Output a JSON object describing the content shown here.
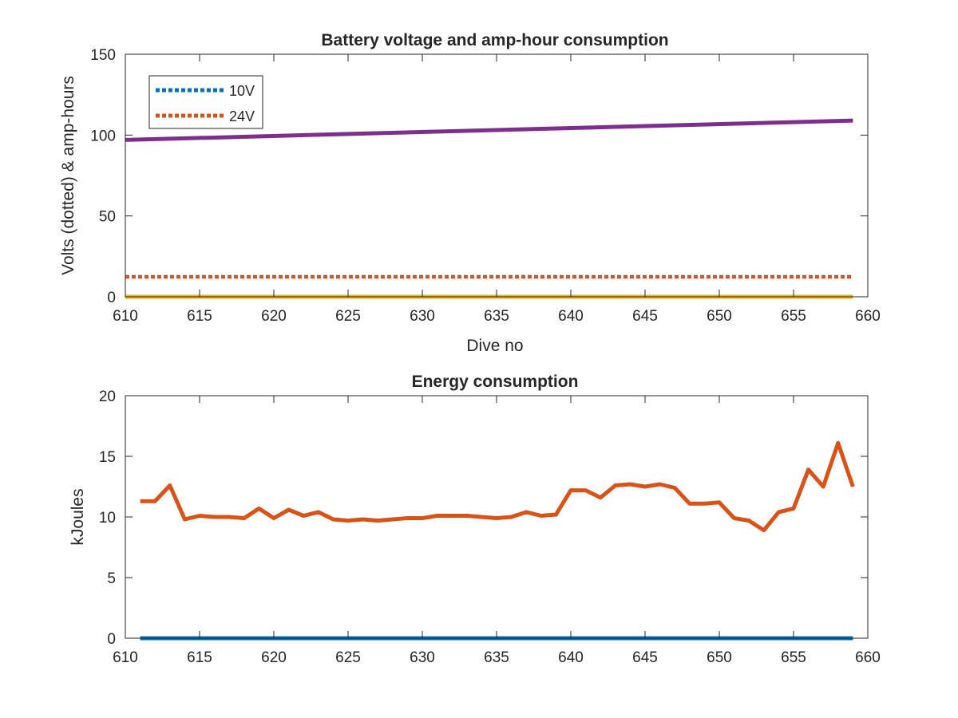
{
  "chart_data": [
    {
      "type": "line",
      "title": "Battery voltage and amp-hour consumption",
      "xlabel": "Dive no",
      "ylabel": "Volts (dotted) & amp-hours",
      "xlim": [
        610,
        660
      ],
      "ylim": [
        0,
        150
      ],
      "xticks": [
        610,
        615,
        620,
        625,
        630,
        635,
        640,
        645,
        650,
        655,
        660
      ],
      "yticks": [
        0,
        50,
        100,
        150
      ],
      "legend_position": "top-left",
      "grid": false,
      "series": [
        {
          "name": "10V",
          "style": "dotted",
          "color": "#0072BD",
          "x": [
            610,
            659
          ],
          "y": [
            12.5,
            12.5
          ]
        },
        {
          "name": "24V",
          "style": "dotted",
          "color": "#D95319",
          "x": [
            610,
            659
          ],
          "y": [
            12.2,
            12.2
          ]
        },
        {
          "style": "solid",
          "color": "#7E2F8E",
          "x": [
            610,
            659
          ],
          "y": [
            97,
            109
          ]
        },
        {
          "style": "solid",
          "color": "#EDB120",
          "x": [
            610,
            659
          ],
          "y": [
            0,
            0
          ]
        }
      ]
    },
    {
      "type": "line",
      "title": "Energy consumption",
      "xlabel": "",
      "ylabel": "kJoules",
      "xlim": [
        610,
        660
      ],
      "ylim": [
        0,
        20
      ],
      "xticks": [
        610,
        615,
        620,
        625,
        630,
        635,
        640,
        645,
        650,
        655,
        660
      ],
      "yticks": [
        0,
        5,
        10,
        15,
        20
      ],
      "grid": false,
      "series": [
        {
          "style": "solid",
          "color": "#0072BD",
          "x": [
            611,
            659
          ],
          "y": [
            0,
            0
          ]
        },
        {
          "style": "solid",
          "color": "#D95319",
          "x": [
            611,
            612,
            613,
            614,
            615,
            616,
            617,
            618,
            619,
            620,
            621,
            622,
            623,
            624,
            625,
            626,
            627,
            628,
            629,
            630,
            631,
            632,
            633,
            634,
            635,
            636,
            637,
            638,
            639,
            640,
            641,
            642,
            643,
            644,
            645,
            646,
            647,
            648,
            649,
            650,
            651,
            652,
            653,
            654,
            655,
            656,
            657,
            658,
            659
          ],
          "y": [
            11.3,
            11.3,
            12.6,
            9.8,
            10.1,
            10.0,
            10.0,
            9.9,
            10.7,
            9.9,
            10.6,
            10.1,
            10.4,
            9.8,
            9.7,
            9.8,
            9.7,
            9.8,
            9.9,
            9.9,
            10.1,
            10.1,
            10.1,
            10.0,
            9.9,
            10.0,
            10.4,
            10.1,
            10.2,
            12.2,
            12.2,
            11.6,
            12.6,
            12.7,
            12.5,
            12.7,
            12.4,
            11.1,
            11.1,
            11.2,
            9.9,
            9.7,
            8.9,
            10.4,
            10.7,
            13.9,
            12.5,
            16.1,
            12.5
          ]
        }
      ]
    }
  ]
}
